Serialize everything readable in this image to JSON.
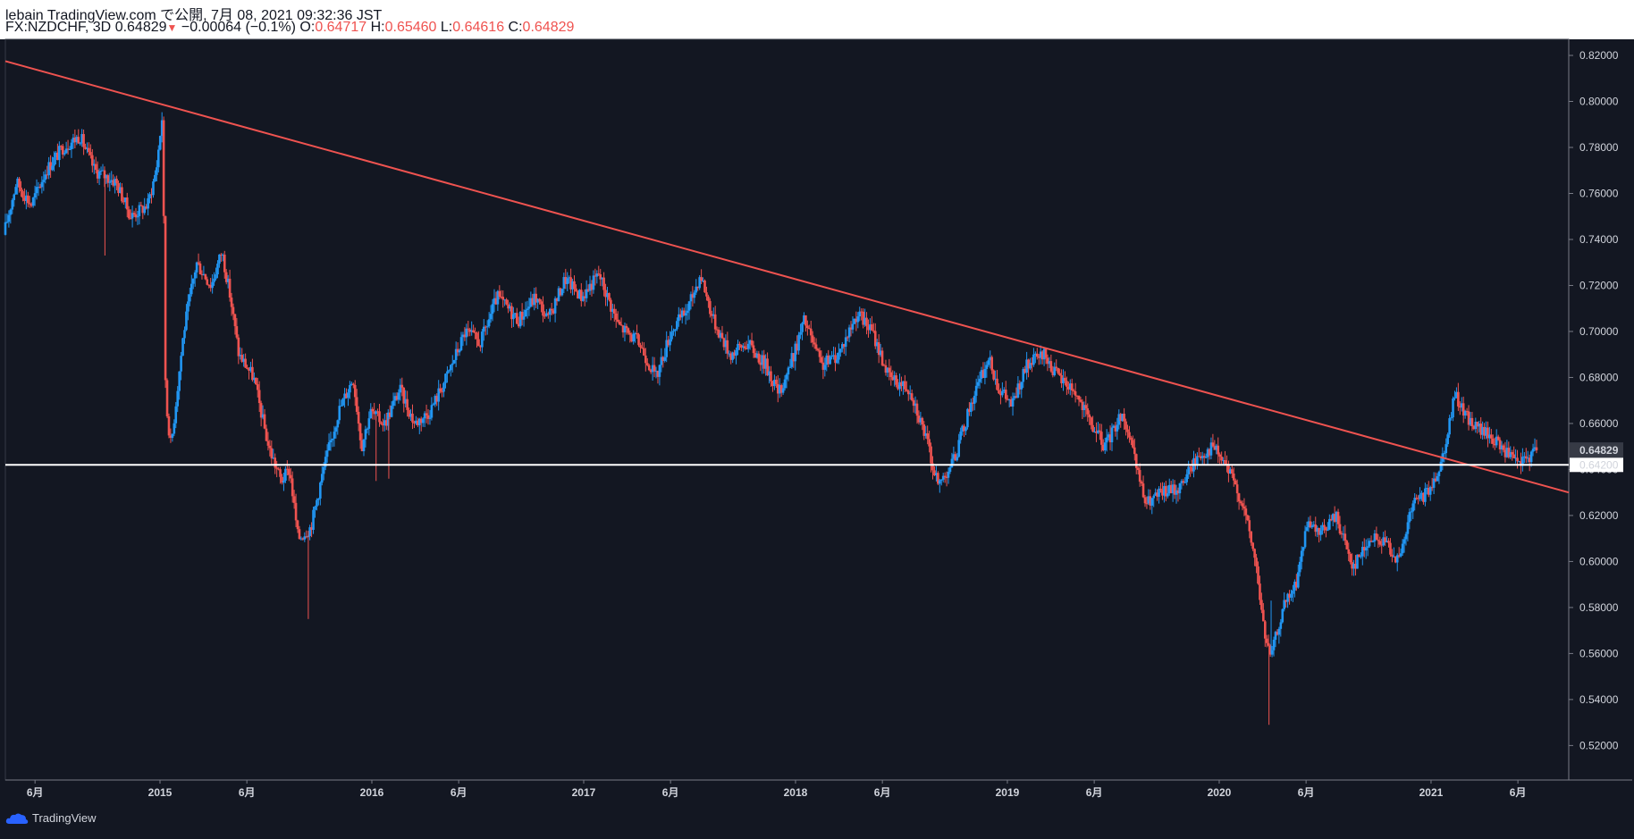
{
  "header": {
    "published": "lebain TradingView.com で公開, 7月 08, 2021 09:32:36 JST",
    "symbol": "FX:NZDCHF, 3D",
    "last": "0.64829",
    "change": "−0.00064 (−0.1%)",
    "o_label": "O:",
    "o_value": "0.64717",
    "h_label": "H:",
    "h_value": "0.65460",
    "l_label": "L:",
    "l_value": "0.64616",
    "c_label": "C:",
    "c_value": "0.64829"
  },
  "footer": {
    "brand": "TradingView",
    "icon": "tradingview-cloud-icon"
  },
  "colors": {
    "background": "#131722",
    "up": "#2196f3",
    "down": "#ef5350",
    "trendline": "#ef5350",
    "support": "#ffffff"
  },
  "chart_data": {
    "type": "candlestick",
    "ylim": [
      0.505,
      0.827
    ],
    "x_range": [
      2014.27,
      2021.65
    ],
    "y_ticks": [
      "0.82000",
      "0.80000",
      "0.78000",
      "0.76000",
      "0.74000",
      "0.72000",
      "0.70000",
      "0.68000",
      "0.66000",
      "0.64000",
      "0.62000",
      "0.60000",
      "0.58000",
      "0.56000",
      "0.54000",
      "0.52000"
    ],
    "x_ticks": [
      {
        "t": 2014.41,
        "label": "6月"
      },
      {
        "t": 2015.0,
        "label": "2015"
      },
      {
        "t": 2015.41,
        "label": "6月"
      },
      {
        "t": 2016.0,
        "label": "2016"
      },
      {
        "t": 2016.41,
        "label": "6月"
      },
      {
        "t": 2017.0,
        "label": "2017"
      },
      {
        "t": 2017.41,
        "label": "6月"
      },
      {
        "t": 2018.0,
        "label": "2018"
      },
      {
        "t": 2018.41,
        "label": "6月"
      },
      {
        "t": 2019.0,
        "label": "2019"
      },
      {
        "t": 2019.41,
        "label": "6月"
      },
      {
        "t": 2020.0,
        "label": "2020"
      },
      {
        "t": 2020.41,
        "label": "6月"
      },
      {
        "t": 2021.0,
        "label": "2021"
      },
      {
        "t": 2021.41,
        "label": "6月"
      }
    ],
    "price_path": [
      [
        2014.27,
        0.742
      ],
      [
        2014.33,
        0.765
      ],
      [
        2014.4,
        0.755
      ],
      [
        2014.47,
        0.77
      ],
      [
        2014.55,
        0.78
      ],
      [
        2014.63,
        0.785
      ],
      [
        2014.7,
        0.77
      ],
      [
        2014.8,
        0.765
      ],
      [
        2014.87,
        0.75
      ],
      [
        2014.95,
        0.755
      ],
      [
        2014.99,
        0.77
      ],
      [
        2015.02,
        0.795
      ],
      [
        2015.035,
        0.67
      ],
      [
        2015.06,
        0.65
      ],
      [
        2015.12,
        0.7
      ],
      [
        2015.18,
        0.73
      ],
      [
        2015.25,
        0.72
      ],
      [
        2015.3,
        0.735
      ],
      [
        2015.34,
        0.715
      ],
      [
        2015.38,
        0.69
      ],
      [
        2015.45,
        0.68
      ],
      [
        2015.52,
        0.65
      ],
      [
        2015.58,
        0.635
      ],
      [
        2015.62,
        0.64
      ],
      [
        2015.66,
        0.61
      ],
      [
        2015.72,
        0.615
      ],
      [
        2015.78,
        0.64
      ],
      [
        2015.85,
        0.665
      ],
      [
        2015.92,
        0.68
      ],
      [
        2015.96,
        0.65
      ],
      [
        2016.0,
        0.665
      ],
      [
        2016.07,
        0.66
      ],
      [
        2016.14,
        0.675
      ],
      [
        2016.21,
        0.66
      ],
      [
        2016.28,
        0.665
      ],
      [
        2016.36,
        0.68
      ],
      [
        2016.45,
        0.7
      ],
      [
        2016.52,
        0.695
      ],
      [
        2016.6,
        0.715
      ],
      [
        2016.7,
        0.705
      ],
      [
        2016.78,
        0.715
      ],
      [
        2016.84,
        0.705
      ],
      [
        2016.92,
        0.723
      ],
      [
        2017.0,
        0.715
      ],
      [
        2017.08,
        0.725
      ],
      [
        2017.17,
        0.703
      ],
      [
        2017.27,
        0.695
      ],
      [
        2017.35,
        0.68
      ],
      [
        2017.42,
        0.7
      ],
      [
        2017.5,
        0.71
      ],
      [
        2017.56,
        0.725
      ],
      [
        2017.62,
        0.705
      ],
      [
        2017.7,
        0.69
      ],
      [
        2017.78,
        0.695
      ],
      [
        2017.87,
        0.685
      ],
      [
        2017.93,
        0.673
      ],
      [
        2018.0,
        0.69
      ],
      [
        2018.05,
        0.705
      ],
      [
        2018.13,
        0.685
      ],
      [
        2018.21,
        0.69
      ],
      [
        2018.3,
        0.708
      ],
      [
        2018.37,
        0.7
      ],
      [
        2018.45,
        0.68
      ],
      [
        2018.55,
        0.675
      ],
      [
        2018.62,
        0.655
      ],
      [
        2018.68,
        0.633
      ],
      [
        2018.76,
        0.645
      ],
      [
        2018.84,
        0.67
      ],
      [
        2018.92,
        0.688
      ],
      [
        2018.97,
        0.675
      ],
      [
        2019.03,
        0.668
      ],
      [
        2019.1,
        0.685
      ],
      [
        2019.18,
        0.69
      ],
      [
        2019.25,
        0.68
      ],
      [
        2019.32,
        0.675
      ],
      [
        2019.4,
        0.66
      ],
      [
        2019.47,
        0.65
      ],
      [
        2019.55,
        0.665
      ],
      [
        2019.62,
        0.64
      ],
      [
        2019.66,
        0.625
      ],
      [
        2019.74,
        0.63
      ],
      [
        2019.82,
        0.632
      ],
      [
        2019.9,
        0.645
      ],
      [
        2019.98,
        0.65
      ],
      [
        2020.05,
        0.64
      ],
      [
        2020.12,
        0.625
      ],
      [
        2020.18,
        0.6
      ],
      [
        2020.22,
        0.57
      ],
      [
        2020.25,
        0.558
      ],
      [
        2020.31,
        0.58
      ],
      [
        2020.37,
        0.59
      ],
      [
        2020.42,
        0.615
      ],
      [
        2020.48,
        0.612
      ],
      [
        2020.56,
        0.62
      ],
      [
        2020.64,
        0.598
      ],
      [
        2020.72,
        0.61
      ],
      [
        2020.8,
        0.608
      ],
      [
        2020.86,
        0.6
      ],
      [
        2020.92,
        0.625
      ],
      [
        2021.0,
        0.63
      ],
      [
        2021.06,
        0.645
      ],
      [
        2021.12,
        0.672
      ],
      [
        2021.2,
        0.66
      ],
      [
        2021.28,
        0.655
      ],
      [
        2021.36,
        0.648
      ],
      [
        2021.42,
        0.642
      ],
      [
        2021.5,
        0.648
      ]
    ],
    "extra_wicks": [
      {
        "t": 2014.74,
        "low": 0.733
      },
      {
        "t": 2015.7,
        "low": 0.575
      },
      {
        "t": 2016.02,
        "low": 0.635
      },
      {
        "t": 2016.08,
        "low": 0.636
      },
      {
        "t": 2020.235,
        "low": 0.529
      },
      {
        "t": 2020.245,
        "high": 0.583
      }
    ],
    "trendline": {
      "start": [
        2014.27,
        0.8175
      ],
      "end": [
        2021.65,
        0.63
      ],
      "color": "#ef5350"
    },
    "support_line": {
      "price": 0.642,
      "color": "#ffffff",
      "label": "0.64200"
    },
    "last_price": {
      "price": 0.64829,
      "label": "0.64829"
    }
  }
}
